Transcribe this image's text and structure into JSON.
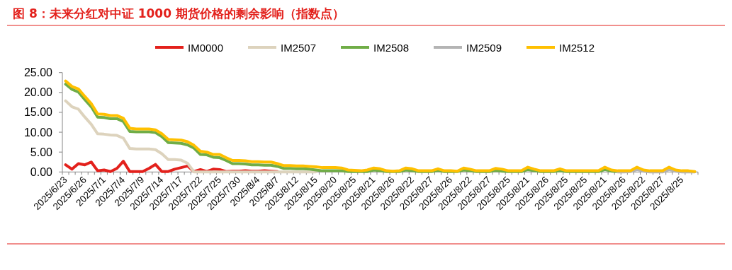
{
  "chart_data": {
    "type": "line",
    "title": "图 8：未来分红对中证 1000 期货价格的剩余影响（指数点）",
    "categories": [
      "2025/6/23",
      null,
      null,
      "2025/6/26",
      null,
      null,
      "2025/7/1",
      null,
      null,
      "2025/7/4",
      null,
      null,
      "2025/7/9",
      null,
      null,
      "2025/7/14",
      null,
      null,
      "2025/7/17",
      null,
      null,
      "2025/7/22",
      null,
      null,
      "2025/7/25",
      null,
      null,
      "2025/7/30",
      null,
      null,
      "2025/8/4",
      null,
      null,
      "2025/8/7",
      null,
      null,
      "2025/8/12",
      null,
      null,
      "2025/8/15",
      null,
      null,
      "2025/8/20",
      null,
      null,
      "2025/8/25",
      null,
      null,
      "2025/8/21",
      null,
      null,
      "2025/8/26",
      null,
      null,
      "2025/8/22",
      null,
      null,
      "2025/8/27",
      null,
      null,
      "2025/8/26",
      null,
      null,
      "2025/8/22",
      null,
      null,
      "2025/8/27",
      null,
      null,
      "2025/8/25",
      null,
      null,
      "2025/8/21",
      null,
      null,
      "2025/8/26",
      null,
      null,
      "2025/8/25",
      null,
      null,
      "2025/8/25",
      null,
      null,
      "2025/8/21",
      null,
      null,
      "2025/8/26",
      null,
      null,
      "2025/8/22",
      null,
      null,
      "2025/8/27",
      null,
      null,
      "2025/8/25",
      null,
      null
    ],
    "series": [
      {
        "name": "IM0000",
        "color": "#e3211c",
        "values": [
          1.8,
          0.7,
          2.1,
          1.8,
          2.5,
          0.3,
          0.5,
          0.1,
          0.9,
          2.7,
          0.1,
          0.1,
          0.1,
          0.9,
          1.9,
          0.1,
          0.1,
          0.7,
          1.1,
          1.5,
          0.1,
          0.6,
          0.1,
          0.7,
          0.6,
          0.1,
          0.2,
          0.2,
          0.3,
          0.2,
          0.2,
          0.3,
          0.2,
          0.1,
          null,
          null,
          null,
          null,
          null,
          null,
          null,
          null,
          null,
          null,
          null,
          null,
          null,
          null,
          null,
          null,
          null,
          null,
          null,
          null,
          null,
          null,
          null,
          null,
          null,
          null,
          null,
          null,
          null,
          null,
          null,
          null,
          null,
          null,
          null,
          null,
          null,
          null,
          null,
          null,
          null,
          null,
          null,
          null,
          null,
          null,
          null,
          null,
          null,
          null,
          null,
          null,
          null,
          null,
          null,
          null,
          null,
          null,
          null,
          null,
          null,
          null,
          null,
          null,
          null
        ]
      },
      {
        "name": "IM2507",
        "color": "#ddd3bd",
        "values": [
          17.9,
          16.4,
          15.8,
          13.8,
          12.0,
          9.6,
          9.5,
          9.3,
          9.2,
          8.5,
          5.9,
          5.8,
          5.8,
          5.8,
          5.6,
          4.6,
          3.1,
          3.1,
          3.0,
          2.2,
          0,
          0,
          0,
          0,
          0,
          0,
          0,
          0,
          0,
          0,
          0,
          0,
          0,
          0,
          0,
          0,
          0,
          0,
          0,
          0,
          null,
          null,
          null,
          null,
          null,
          null,
          null,
          null,
          null,
          null,
          null,
          null,
          null,
          null,
          null,
          null,
          null,
          null,
          null,
          null,
          null,
          null,
          null,
          null,
          null,
          null,
          null,
          null,
          null,
          null,
          null,
          null,
          null,
          null,
          null,
          null,
          null,
          null,
          null,
          null,
          null,
          null,
          null,
          null,
          null,
          null,
          null,
          null,
          null,
          null,
          null,
          null,
          null,
          null,
          null,
          null,
          null,
          null,
          null
        ]
      },
      {
        "name": "IM2508",
        "color": "#70ad47",
        "values": [
          22.1,
          20.8,
          20.1,
          18.2,
          16.4,
          13.8,
          13.7,
          13.4,
          13.4,
          12.7,
          10.2,
          10.1,
          10.1,
          10.1,
          9.9,
          8.9,
          7.4,
          7.3,
          7.2,
          6.8,
          6.0,
          4.4,
          4.3,
          3.7,
          3.6,
          2.9,
          2.1,
          2.1,
          2.0,
          1.8,
          1.8,
          1.7,
          1.7,
          1.4,
          0.9,
          0.9,
          0.8,
          0.8,
          0.7,
          0.5,
          0.3,
          0.3,
          0.3,
          0.3,
          0.1,
          0.1,
          0.1,
          0.1,
          0.5,
          0.3,
          0.1,
          0.1,
          0.1,
          0.5,
          0.3,
          0.1,
          0.1,
          0.1,
          0.4,
          0.1,
          0.1,
          0.1,
          0.5,
          0.3,
          0.1,
          0.1,
          0.1,
          0.4,
          0.2,
          0.1,
          0.1,
          0.1,
          0.6,
          0.3,
          0.1,
          0.1,
          0.1,
          0.3,
          0.1,
          0.1,
          0.1,
          0.1,
          0.1,
          0.1,
          0.6,
          0.2,
          0.1,
          null,
          null,
          null,
          null,
          null,
          null,
          null,
          null,
          null,
          null,
          null,
          null
        ]
      },
      {
        "name": "IM2509",
        "color": "#b4b4b4",
        "values": [
          null,
          null,
          null,
          null,
          null,
          null,
          null,
          null,
          null,
          null,
          null,
          null,
          null,
          null,
          null,
          null,
          null,
          null,
          null,
          null,
          null,
          null,
          null,
          null,
          null,
          null,
          null,
          null,
          null,
          null,
          null,
          null,
          null,
          null,
          null,
          null,
          null,
          null,
          null,
          null,
          null,
          null,
          null,
          null,
          null,
          null,
          null,
          null,
          null,
          null,
          null,
          null,
          null,
          null,
          null,
          null,
          null,
          null,
          null,
          null,
          null,
          null,
          null,
          null,
          null,
          null,
          null,
          null,
          null,
          null,
          null,
          null,
          null,
          null,
          null,
          null,
          null,
          null,
          null,
          null,
          null,
          null,
          null,
          null,
          null,
          null,
          0,
          0,
          0.1,
          0.6,
          0.2,
          0,
          0,
          0,
          0.6,
          0.2,
          0,
          0,
          0
        ]
      },
      {
        "name": "IM2512",
        "color": "#ffc000",
        "values": [
          22.9,
          21.5,
          20.9,
          19.0,
          17.2,
          14.6,
          14.5,
          14.2,
          14.2,
          13.5,
          11.0,
          10.8,
          10.8,
          10.8,
          10.6,
          9.6,
          8.2,
          8.1,
          8.0,
          7.6,
          6.7,
          5.2,
          5.0,
          4.4,
          4.4,
          3.6,
          2.9,
          2.9,
          2.8,
          2.6,
          2.6,
          2.5,
          2.5,
          2.1,
          1.6,
          1.6,
          1.5,
          1.5,
          1.4,
          1.3,
          1.1,
          1.1,
          1.1,
          1.0,
          0.5,
          0.4,
          0.3,
          0.5,
          1.0,
          0.8,
          0.3,
          0.2,
          0.3,
          1.0,
          0.8,
          0.3,
          0.3,
          0.3,
          0.8,
          0.3,
          0.3,
          0.2,
          1.0,
          0.7,
          0.3,
          0.3,
          0.3,
          0.9,
          0.7,
          0.3,
          0.3,
          0.3,
          1.2,
          0.7,
          0.3,
          0.3,
          0.3,
          0.8,
          0.3,
          0.3,
          0.3,
          0.3,
          0.3,
          0.3,
          1.2,
          0.5,
          0.3,
          0.3,
          0.3,
          1.2,
          0.5,
          0.3,
          0.3,
          0.3,
          1.2,
          0.5,
          0.3,
          0.3,
          0.1
        ]
      }
    ],
    "ylim": [
      0,
      25
    ],
    "yticks": [
      {
        "value": 0,
        "label": "0.00"
      },
      {
        "value": 5,
        "label": "5.00"
      },
      {
        "value": 10,
        "label": "10.00"
      },
      {
        "value": 15,
        "label": "15.00"
      },
      {
        "value": 20,
        "label": "20.00"
      },
      {
        "value": 25,
        "label": "25.00"
      }
    ],
    "legend": "top",
    "grid": false,
    "marker": "none",
    "line_style": "solid"
  }
}
